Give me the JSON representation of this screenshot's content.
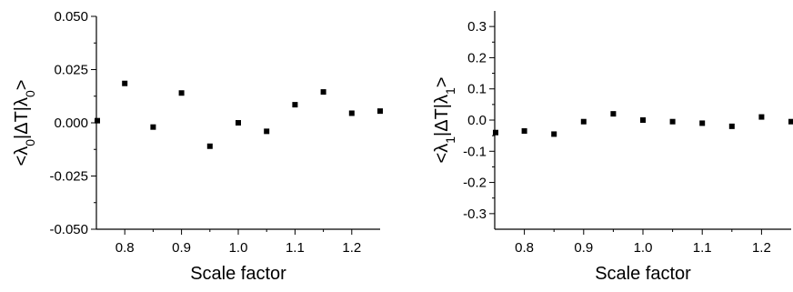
{
  "chart_data": [
    {
      "type": "scatter",
      "xlabel": "Scale factor",
      "ylabel": "<λ0|ΔT|λ0>",
      "ylabel_parts": {
        "open": "<λ",
        "sub1": "0",
        "mid": "|ΔT|λ",
        "sub2": "0",
        "close": ">"
      },
      "xlim": [
        0.75,
        1.25
      ],
      "ylim": [
        -0.05,
        0.05
      ],
      "xticks": [
        0.8,
        0.9,
        1.0,
        1.1,
        1.2
      ],
      "xtick_labels": [
        "0.8",
        "0.9",
        "1.0",
        "1.1",
        "1.2"
      ],
      "yticks": [
        -0.05,
        -0.025,
        0.0,
        0.025,
        0.05
      ],
      "ytick_labels": [
        "-0.050",
        "-0.025",
        "0.000",
        "0.025",
        "0.050"
      ],
      "marker": "square",
      "color": "#000000",
      "grid": false,
      "x": [
        0.75,
        0.8,
        0.85,
        0.9,
        0.95,
        1.0,
        1.05,
        1.1,
        1.15,
        1.2,
        1.25
      ],
      "y": [
        0.001,
        0.0185,
        -0.002,
        0.014,
        -0.011,
        0.0,
        -0.004,
        0.0085,
        0.0145,
        0.0045,
        0.0055
      ]
    },
    {
      "type": "scatter",
      "xlabel": "Scale factor",
      "ylabel": "<λ1|ΔT|λ1>",
      "ylabel_parts": {
        "open": "<λ",
        "sub1": "1",
        "mid": "|ΔT|λ",
        "sub2": "1",
        "close": ">"
      },
      "xlim": [
        0.75,
        1.25
      ],
      "ylim": [
        -0.35,
        0.35
      ],
      "xticks": [
        0.8,
        0.9,
        1.0,
        1.1,
        1.2
      ],
      "xtick_labels": [
        "0.8",
        "0.9",
        "1.0",
        "1.1",
        "1.2"
      ],
      "yticks": [
        -0.3,
        -0.2,
        -0.1,
        0.0,
        0.1,
        0.2,
        0.3
      ],
      "ytick_labels": [
        "-0.3",
        "-0.2",
        "-0.1",
        "0.0",
        "0.1",
        "0.2",
        "0.3"
      ],
      "marker": "square",
      "color": "#000000",
      "grid": false,
      "x": [
        0.75,
        0.8,
        0.85,
        0.9,
        0.95,
        1.0,
        1.05,
        1.1,
        1.15,
        1.2,
        1.25
      ],
      "y": [
        -0.04,
        -0.035,
        -0.045,
        -0.005,
        0.02,
        0.0,
        -0.005,
        -0.01,
        -0.02,
        0.01,
        -0.005
      ]
    }
  ]
}
